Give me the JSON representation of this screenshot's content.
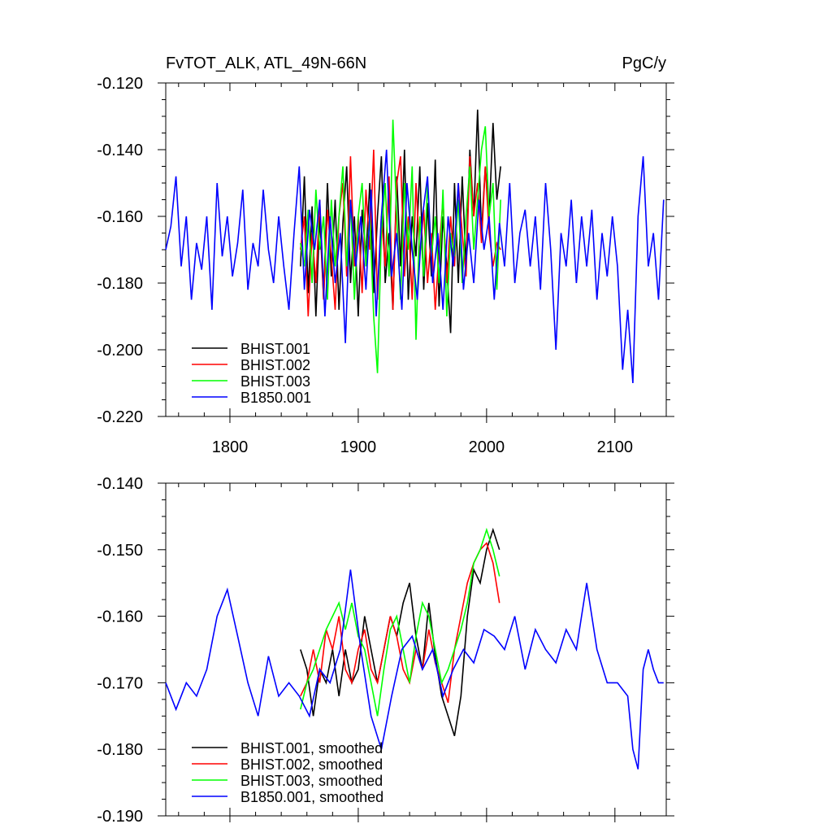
{
  "page": {
    "title": "FvTOT_ALK, ATL_49N-66N",
    "units": "PgC/y"
  },
  "chart_data": [
    {
      "type": "line",
      "title": "FvTOT_ALK, ATL_49N-66N",
      "units_label": "PgC/y",
      "xlim": [
        1750,
        2140
      ],
      "ylim": [
        -0.22,
        -0.12
      ],
      "xticks": [
        1800,
        1900,
        2000,
        2100
      ],
      "xticklabels": [
        "1800",
        "1900",
        "2000",
        "2100"
      ],
      "yticks": [
        -0.22,
        -0.2,
        -0.18,
        -0.16,
        -0.14,
        -0.12
      ],
      "yticklabels": [
        "-0.220",
        "-0.200",
        "-0.180",
        "-0.160",
        "-0.140",
        "-0.120"
      ],
      "legend_position": "bottom-left",
      "grid": false,
      "series": [
        {
          "name": "BHIST.001",
          "color": "#000000",
          "x": [
            1855,
            1858,
            1861,
            1864,
            1867,
            1870,
            1873,
            1876,
            1879,
            1882,
            1885,
            1888,
            1891,
            1894,
            1897,
            1900,
            1903,
            1906,
            1909,
            1912,
            1915,
            1918,
            1921,
            1924,
            1927,
            1930,
            1933,
            1936,
            1939,
            1942,
            1945,
            1948,
            1951,
            1954,
            1957,
            1960,
            1963,
            1966,
            1969,
            1972,
            1975,
            1978,
            1981,
            1984,
            1987,
            1990,
            1993,
            1996,
            1999,
            2002,
            2005,
            2008,
            2011
          ],
          "y": [
            -0.175,
            -0.148,
            -0.183,
            -0.157,
            -0.19,
            -0.16,
            -0.185,
            -0.15,
            -0.178,
            -0.155,
            -0.188,
            -0.162,
            -0.145,
            -0.18,
            -0.16,
            -0.19,
            -0.158,
            -0.172,
            -0.15,
            -0.183,
            -0.16,
            -0.142,
            -0.18,
            -0.165,
            -0.188,
            -0.148,
            -0.175,
            -0.14,
            -0.185,
            -0.16,
            -0.172,
            -0.145,
            -0.182,
            -0.156,
            -0.178,
            -0.143,
            -0.187,
            -0.16,
            -0.175,
            -0.195,
            -0.15,
            -0.18,
            -0.148,
            -0.175,
            -0.14,
            -0.16,
            -0.128,
            -0.165,
            -0.145,
            -0.16,
            -0.132,
            -0.155,
            -0.145
          ]
        },
        {
          "name": "BHIST.002",
          "color": "#ff0000",
          "x": [
            1855,
            1858,
            1861,
            1864,
            1867,
            1870,
            1873,
            1876,
            1879,
            1882,
            1885,
            1888,
            1891,
            1894,
            1897,
            1900,
            1903,
            1906,
            1909,
            1912,
            1915,
            1918,
            1921,
            1924,
            1927,
            1930,
            1933,
            1936,
            1939,
            1942,
            1945,
            1948,
            1951,
            1954,
            1957,
            1960,
            1963,
            1966,
            1969,
            1972,
            1975,
            1978,
            1981,
            1984,
            1987,
            1990,
            1993,
            1996,
            1999,
            2002,
            2005,
            2008,
            2011
          ],
          "y": [
            -0.17,
            -0.16,
            -0.19,
            -0.165,
            -0.18,
            -0.155,
            -0.185,
            -0.158,
            -0.172,
            -0.188,
            -0.16,
            -0.15,
            -0.178,
            -0.142,
            -0.175,
            -0.16,
            -0.183,
            -0.152,
            -0.17,
            -0.14,
            -0.185,
            -0.16,
            -0.175,
            -0.148,
            -0.188,
            -0.15,
            -0.142,
            -0.178,
            -0.16,
            -0.185,
            -0.15,
            -0.172,
            -0.158,
            -0.18,
            -0.165,
            -0.188,
            -0.17,
            -0.155,
            -0.18,
            -0.16,
            -0.175,
            -0.15,
            -0.165,
            -0.178,
            -0.142,
            -0.16,
            -0.15,
            -0.168,
            -0.145,
            -0.165,
            -0.175,
            -0.168,
            -0.17
          ]
        },
        {
          "name": "BHIST.003",
          "color": "#00ff00",
          "x": [
            1855,
            1858,
            1861,
            1864,
            1867,
            1870,
            1873,
            1876,
            1879,
            1882,
            1885,
            1888,
            1891,
            1894,
            1897,
            1900,
            1903,
            1906,
            1909,
            1912,
            1915,
            1918,
            1921,
            1924,
            1927,
            1930,
            1933,
            1936,
            1939,
            1942,
            1945,
            1948,
            1951,
            1954,
            1957,
            1960,
            1963,
            1966,
            1969,
            1972,
            1975,
            1978,
            1981,
            1984,
            1987,
            1990,
            1993,
            1996,
            1999,
            2002,
            2005,
            2008,
            2011
          ],
          "y": [
            -0.168,
            -0.175,
            -0.158,
            -0.18,
            -0.152,
            -0.17,
            -0.16,
            -0.185,
            -0.155,
            -0.175,
            -0.16,
            -0.145,
            -0.175,
            -0.155,
            -0.185,
            -0.16,
            -0.15,
            -0.175,
            -0.16,
            -0.19,
            -0.207,
            -0.165,
            -0.15,
            -0.178,
            -0.131,
            -0.16,
            -0.185,
            -0.15,
            -0.17,
            -0.145,
            -0.197,
            -0.16,
            -0.178,
            -0.15,
            -0.172,
            -0.16,
            -0.18,
            -0.152,
            -0.19,
            -0.165,
            -0.172,
            -0.155,
            -0.18,
            -0.16,
            -0.145,
            -0.17,
            -0.155,
            -0.14,
            -0.133,
            -0.16,
            -0.15,
            -0.182,
            -0.155
          ]
        },
        {
          "name": "B1850.001",
          "color": "#0000ff",
          "x": [
            1750,
            1754,
            1758,
            1762,
            1766,
            1770,
            1774,
            1778,
            1782,
            1786,
            1790,
            1794,
            1798,
            1802,
            1806,
            1810,
            1814,
            1818,
            1822,
            1826,
            1830,
            1834,
            1838,
            1842,
            1846,
            1850,
            1854,
            1858,
            1862,
            1866,
            1870,
            1874,
            1878,
            1882,
            1886,
            1890,
            1894,
            1898,
            1902,
            1906,
            1910,
            1914,
            1918,
            1922,
            1926,
            1930,
            1934,
            1938,
            1942,
            1946,
            1950,
            1954,
            1958,
            1962,
            1966,
            1970,
            1974,
            1978,
            1982,
            1986,
            1990,
            1994,
            1998,
            2002,
            2006,
            2010,
            2014,
            2018,
            2022,
            2026,
            2030,
            2034,
            2038,
            2042,
            2046,
            2050,
            2054,
            2058,
            2062,
            2066,
            2070,
            2074,
            2078,
            2082,
            2086,
            2090,
            2094,
            2098,
            2102,
            2106,
            2110,
            2114,
            2118,
            2122,
            2126,
            2130,
            2134,
            2138
          ],
          "y": [
            -0.17,
            -0.163,
            -0.148,
            -0.175,
            -0.16,
            -0.185,
            -0.168,
            -0.176,
            -0.16,
            -0.188,
            -0.15,
            -0.172,
            -0.16,
            -0.178,
            -0.168,
            -0.152,
            -0.182,
            -0.168,
            -0.175,
            -0.152,
            -0.17,
            -0.18,
            -0.16,
            -0.175,
            -0.188,
            -0.165,
            -0.145,
            -0.182,
            -0.158,
            -0.17,
            -0.155,
            -0.19,
            -0.16,
            -0.18,
            -0.165,
            -0.198,
            -0.155,
            -0.175,
            -0.16,
            -0.182,
            -0.152,
            -0.19,
            -0.16,
            -0.14,
            -0.178,
            -0.165,
            -0.188,
            -0.15,
            -0.17,
            -0.185,
            -0.16,
            -0.148,
            -0.18,
            -0.165,
            -0.188,
            -0.16,
            -0.175,
            -0.15,
            -0.182,
            -0.165,
            -0.18,
            -0.155,
            -0.17,
            -0.16,
            -0.185,
            -0.162,
            -0.175,
            -0.15,
            -0.18,
            -0.165,
            -0.158,
            -0.175,
            -0.16,
            -0.182,
            -0.15,
            -0.17,
            -0.2,
            -0.165,
            -0.175,
            -0.155,
            -0.18,
            -0.16,
            -0.175,
            -0.158,
            -0.185,
            -0.165,
            -0.178,
            -0.16,
            -0.175,
            -0.206,
            -0.188,
            -0.21,
            -0.16,
            -0.142,
            -0.175,
            -0.165,
            -0.185,
            -0.155
          ]
        }
      ]
    },
    {
      "type": "line",
      "xlim": [
        1750,
        2140
      ],
      "ylim": [
        -0.19,
        -0.14
      ],
      "xticks": [
        1800,
        1900,
        2000,
        2100
      ],
      "yticks": [
        -0.19,
        -0.18,
        -0.17,
        -0.16,
        -0.15,
        -0.14
      ],
      "yticklabels": [
        "-0.190",
        "-0.180",
        "-0.170",
        "-0.160",
        "-0.150",
        "-0.140"
      ],
      "legend_position": "bottom-left",
      "grid": false,
      "series": [
        {
          "name": "BHIST.001, smoothed",
          "color": "#000000",
          "x": [
            1855,
            1860,
            1865,
            1870,
            1875,
            1880,
            1885,
            1890,
            1895,
            1900,
            1905,
            1910,
            1915,
            1920,
            1925,
            1930,
            1935,
            1940,
            1945,
            1950,
            1955,
            1960,
            1965,
            1970,
            1975,
            1980,
            1985,
            1990,
            1995,
            2000,
            2005,
            2010
          ],
          "y": [
            -0.165,
            -0.168,
            -0.175,
            -0.168,
            -0.17,
            -0.165,
            -0.172,
            -0.165,
            -0.17,
            -0.168,
            -0.16,
            -0.165,
            -0.17,
            -0.165,
            -0.16,
            -0.163,
            -0.158,
            -0.155,
            -0.163,
            -0.168,
            -0.158,
            -0.166,
            -0.172,
            -0.175,
            -0.178,
            -0.172,
            -0.16,
            -0.153,
            -0.155,
            -0.15,
            -0.147,
            -0.15
          ]
        },
        {
          "name": "BHIST.002, smoothed",
          "color": "#ff0000",
          "x": [
            1855,
            1860,
            1865,
            1870,
            1875,
            1880,
            1885,
            1890,
            1895,
            1900,
            1905,
            1910,
            1915,
            1920,
            1925,
            1930,
            1935,
            1940,
            1945,
            1950,
            1955,
            1960,
            1965,
            1970,
            1975,
            1980,
            1985,
            1990,
            1995,
            2000,
            2005,
            2010
          ],
          "y": [
            -0.172,
            -0.17,
            -0.165,
            -0.17,
            -0.162,
            -0.165,
            -0.16,
            -0.168,
            -0.17,
            -0.165,
            -0.162,
            -0.168,
            -0.17,
            -0.165,
            -0.16,
            -0.163,
            -0.168,
            -0.17,
            -0.165,
            -0.168,
            -0.162,
            -0.167,
            -0.17,
            -0.173,
            -0.165,
            -0.16,
            -0.155,
            -0.152,
            -0.15,
            -0.149,
            -0.152,
            -0.158
          ]
        },
        {
          "name": "BHIST.003, smoothed",
          "color": "#00ff00",
          "x": [
            1855,
            1860,
            1865,
            1870,
            1875,
            1880,
            1885,
            1890,
            1895,
            1900,
            1905,
            1910,
            1915,
            1920,
            1925,
            1930,
            1935,
            1940,
            1945,
            1950,
            1955,
            1960,
            1965,
            1970,
            1975,
            1980,
            1985,
            1990,
            1995,
            2000,
            2005,
            2010
          ],
          "y": [
            -0.174,
            -0.17,
            -0.168,
            -0.165,
            -0.162,
            -0.16,
            -0.158,
            -0.162,
            -0.158,
            -0.163,
            -0.165,
            -0.17,
            -0.175,
            -0.168,
            -0.162,
            -0.16,
            -0.165,
            -0.17,
            -0.163,
            -0.158,
            -0.16,
            -0.165,
            -0.17,
            -0.168,
            -0.165,
            -0.162,
            -0.158,
            -0.152,
            -0.15,
            -0.147,
            -0.15,
            -0.154
          ]
        },
        {
          "name": "B1850.001, smoothed",
          "color": "#0000ff",
          "x": [
            1750,
            1758,
            1766,
            1774,
            1782,
            1790,
            1798,
            1806,
            1814,
            1822,
            1830,
            1838,
            1846,
            1854,
            1862,
            1870,
            1878,
            1886,
            1894,
            1902,
            1910,
            1918,
            1926,
            1934,
            1942,
            1950,
            1958,
            1966,
            1974,
            1982,
            1990,
            1998,
            2006,
            2014,
            2022,
            2030,
            2038,
            2046,
            2054,
            2062,
            2070,
            2078,
            2086,
            2094,
            2102,
            2110,
            2114,
            2118,
            2122,
            2126,
            2130,
            2134,
            2138
          ],
          "y": [
            -0.17,
            -0.174,
            -0.17,
            -0.172,
            -0.168,
            -0.16,
            -0.156,
            -0.163,
            -0.17,
            -0.175,
            -0.166,
            -0.172,
            -0.17,
            -0.172,
            -0.175,
            -0.168,
            -0.17,
            -0.165,
            -0.153,
            -0.165,
            -0.175,
            -0.18,
            -0.172,
            -0.165,
            -0.163,
            -0.168,
            -0.165,
            -0.172,
            -0.168,
            -0.165,
            -0.167,
            -0.162,
            -0.163,
            -0.165,
            -0.16,
            -0.168,
            -0.162,
            -0.165,
            -0.167,
            -0.162,
            -0.165,
            -0.155,
            -0.165,
            -0.17,
            -0.17,
            -0.172,
            -0.18,
            -0.183,
            -0.168,
            -0.165,
            -0.168,
            -0.17,
            -0.17
          ]
        }
      ]
    }
  ]
}
